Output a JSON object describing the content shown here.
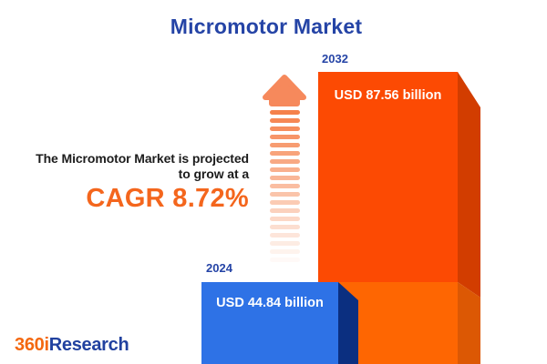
{
  "title": "Micromotor Market",
  "annotation": {
    "line1": "The Micromotor Market is projected",
    "line2": "to grow at a",
    "cagr": "CAGR 8.72%"
  },
  "bars": [
    {
      "year": "2024",
      "value_label": "USD 44.84 billion"
    },
    {
      "year": "2032",
      "value_label": "USD 87.56 billion"
    }
  ],
  "logo": {
    "prefix": "360i",
    "suffix": "Research"
  },
  "icons": {
    "growth_arrow": "up-arrow-dashed-tail"
  },
  "colors": {
    "title_blue": "#2544A6",
    "cagr_orange": "#F4661D",
    "text_dark": "#1C1C1C",
    "bar_2024_front": "#2E72E6",
    "bar_2024_side": "#0B2F80",
    "bar_2032_front_top": "#FC4A03",
    "bar_2032_front_base": "#FE6602",
    "bar_2032_side_top": "#D23D00",
    "bar_2032_side_base": "#DC5804",
    "arrow_orange": "#F5814B",
    "logo_orange": "#F4680F",
    "logo_blue": "#21419F",
    "background": "#FFFFFF"
  },
  "chart_data": {
    "type": "bar",
    "title": "Micromotor Market",
    "categories": [
      "2024",
      "2032"
    ],
    "values": [
      44.84,
      87.56
    ],
    "unit": "USD billion",
    "value_labels": [
      "USD 44.84 billion",
      "USD 87.56 billion"
    ],
    "annotations": [
      "The Micromotor Market is projected to grow at a CAGR 8.72%"
    ],
    "cagr_percent": 8.72,
    "legend_position": "none",
    "grid": false,
    "style": "3d-infographic-bars"
  }
}
